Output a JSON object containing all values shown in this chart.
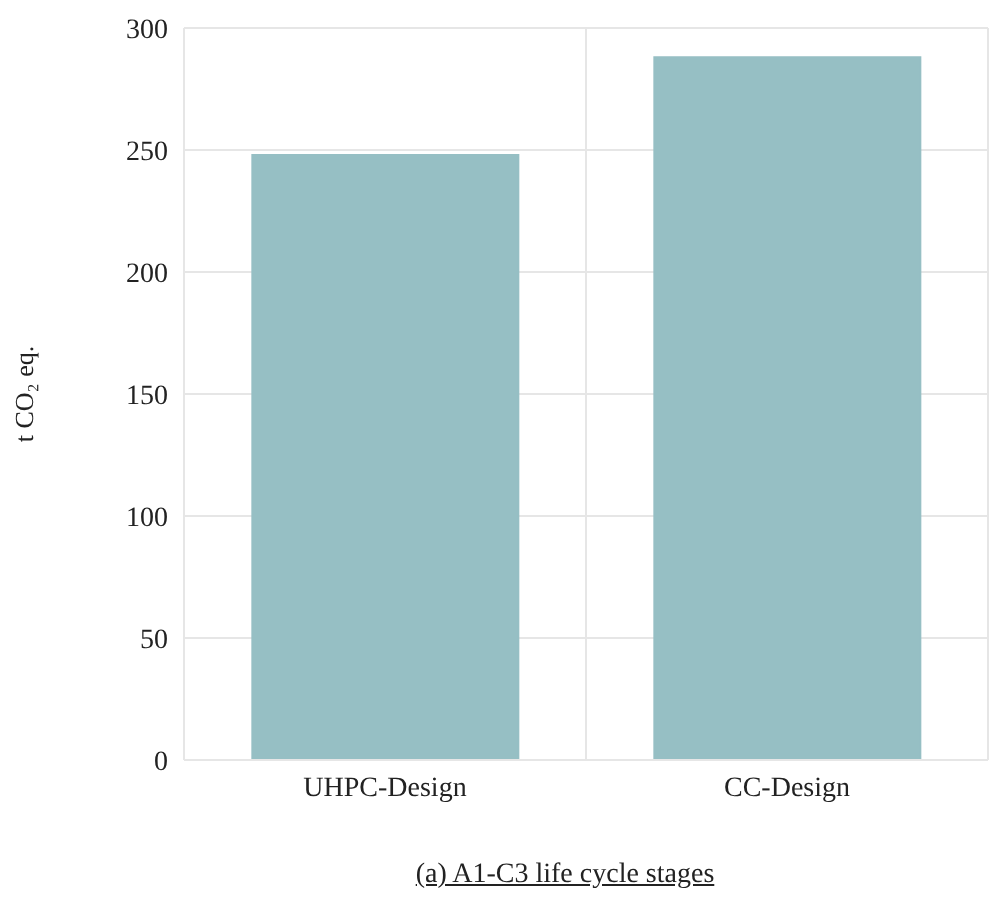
{
  "chart_data": {
    "type": "bar",
    "ylabel": "t CO₂ eq.",
    "categories": [
      "UHPC-Design",
      "CC-Design"
    ],
    "values": [
      248,
      288
    ],
    "color": "#96bfc4",
    "ylim": [
      0,
      300
    ],
    "yticks": [
      0,
      50,
      100,
      150,
      200,
      250,
      300
    ],
    "grid": true,
    "annotations": [
      "(a) A1-C3 life cycle stages"
    ]
  }
}
